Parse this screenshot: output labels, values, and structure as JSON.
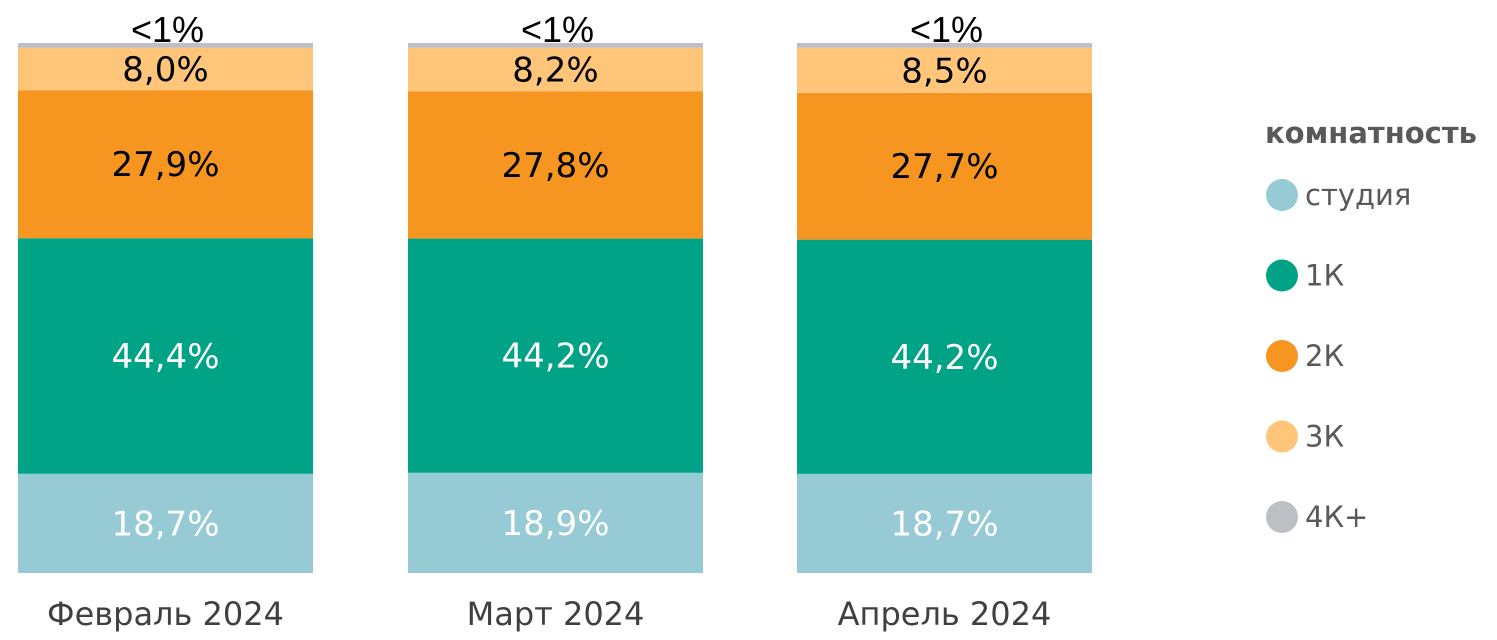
{
  "chart_data": {
    "type": "bar",
    "stacked": true,
    "normalized": true,
    "categories": [
      "Февраль 2024",
      "Март 2024",
      "Апрель 2024"
    ],
    "series": [
      {
        "name": "студия",
        "color": "#96CBD5",
        "values": [
          18.7,
          18.9,
          18.7
        ],
        "labels": [
          "18,7%",
          "18,9%",
          "18,7%"
        ],
        "label_color": "#ffffff"
      },
      {
        "name": "1К",
        "color": "#00A385",
        "values": [
          44.4,
          44.2,
          44.2
        ],
        "labels": [
          "44,4%",
          "44,2%",
          "44,2%"
        ],
        "label_color": "#ffffff"
      },
      {
        "name": "2К",
        "color": "#F79521",
        "values": [
          27.9,
          27.8,
          27.7
        ],
        "labels": [
          "27,9%",
          "27,8%",
          "27,7%"
        ],
        "label_color": "#000000"
      },
      {
        "name": "3К",
        "color": "#FFC67A",
        "values": [
          8.0,
          8.2,
          8.5
        ],
        "labels": [
          "8,0%",
          "8,2%",
          "8,5%"
        ],
        "label_color": "#000000"
      },
      {
        "name": "4К+",
        "color": "#BCC0C4",
        "values": [
          0.9,
          0.9,
          0.9
        ],
        "labels": [
          "<1%",
          "<1%",
          "<1%"
        ],
        "label_color": "#000000"
      }
    ],
    "ylim": [
      0,
      100
    ],
    "grid": false,
    "legend": {
      "title": "комнатность",
      "placement": "right"
    }
  }
}
